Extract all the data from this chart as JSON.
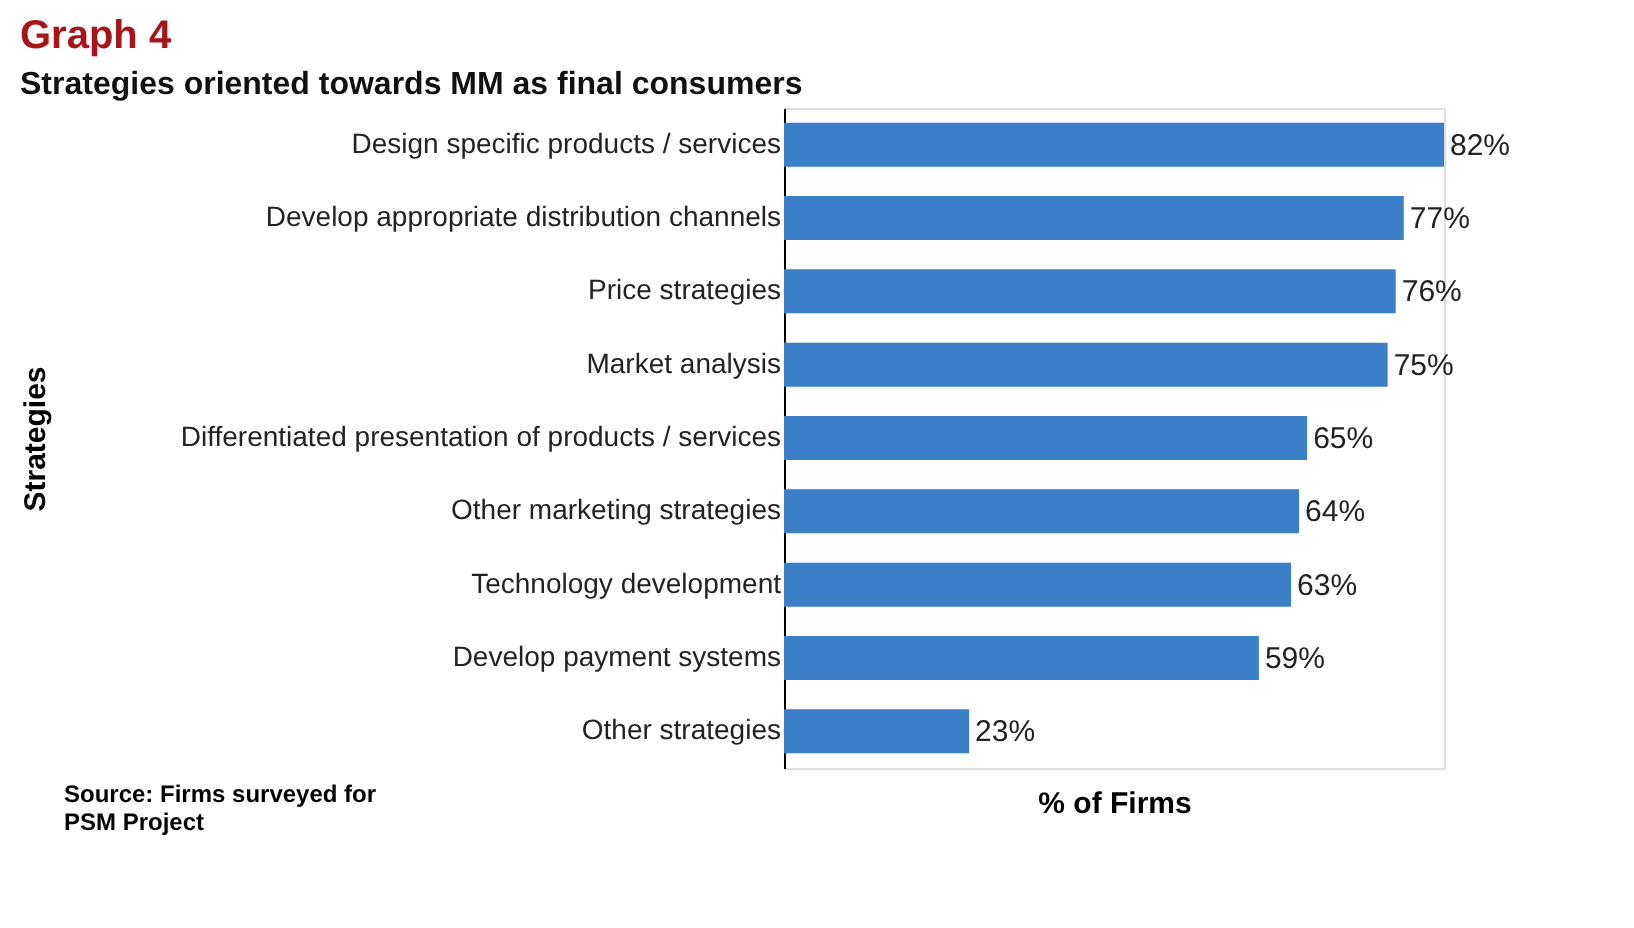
{
  "chart_data": {
    "type": "bar",
    "orientation": "horizontal",
    "title": "Graph 4",
    "subtitle": "Strategies oriented towards MM as final consumers",
    "ylabel": "Strategies",
    "xlabel": "% of Firms",
    "categories": [
      "Design specific products / services",
      "Develop appropriate distribution channels",
      "Price strategies",
      "Market analysis",
      "Differentiated presentation of products / services",
      "Other marketing strategies",
      "Technology development",
      "Develop payment systems",
      "Other strategies"
    ],
    "values": [
      82,
      77,
      76,
      75,
      65,
      64,
      63,
      59,
      23
    ],
    "value_labels": [
      "82%",
      "77%",
      "76%",
      "75%",
      "65%",
      "64%",
      "63%",
      "59%",
      "23%"
    ],
    "color": "#3a7fc8",
    "tick_labels": "y",
    "grid": false,
    "annotations": [
      "Source: Firms surveyed for\nPSM Project"
    ]
  }
}
